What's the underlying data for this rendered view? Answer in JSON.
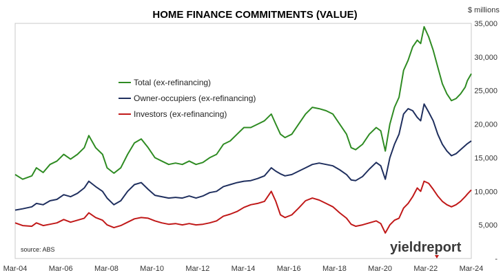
{
  "chart_data": {
    "type": "line",
    "title": "HOME FINANCE COMMITMENTS (VALUE)",
    "y_unit_label": "$ millions",
    "source": "source: ABS",
    "logo": {
      "part1": "yield",
      "part2": "report"
    },
    "xlim": [
      2004.17,
      2024.17
    ],
    "ylim": [
      0,
      35000
    ],
    "grid": false,
    "legend_position": "top-left",
    "x_ticks": [
      {
        "label": "Mar-04",
        "value": 2004.17
      },
      {
        "label": "Mar-06",
        "value": 2006.17
      },
      {
        "label": "Mar-08",
        "value": 2008.17
      },
      {
        "label": "Mar-10",
        "value": 2010.17
      },
      {
        "label": "Mar-12",
        "value": 2012.17
      },
      {
        "label": "Mar-14",
        "value": 2014.17
      },
      {
        "label": "Mar-16",
        "value": 2016.17
      },
      {
        "label": "Mar-18",
        "value": 2018.17
      },
      {
        "label": "Mar-20",
        "value": 2020.17
      },
      {
        "label": "Mar-22",
        "value": 2022.17
      },
      {
        "label": "Mar-24",
        "value": 2024.17
      }
    ],
    "y_ticks": [
      {
        "label": "-",
        "value": 0
      },
      {
        "label": "5,000",
        "value": 5000
      },
      {
        "label": "10,000",
        "value": 10000
      },
      {
        "label": "15,000",
        "value": 15000
      },
      {
        "label": "20,000",
        "value": 20000
      },
      {
        "label": "25,000",
        "value": 25000
      },
      {
        "label": "30,000",
        "value": 30000
      },
      {
        "label": "35,000",
        "value": 35000
      }
    ],
    "series": [
      {
        "name": "Total (ex-refinancing)",
        "color": "#2e8b22",
        "points": [
          [
            2004.17,
            12500
          ],
          [
            2004.5,
            11800
          ],
          [
            2004.9,
            12300
          ],
          [
            2005.1,
            13500
          ],
          [
            2005.4,
            12800
          ],
          [
            2005.7,
            14000
          ],
          [
            2006.0,
            14500
          ],
          [
            2006.3,
            15500
          ],
          [
            2006.6,
            14800
          ],
          [
            2006.9,
            15500
          ],
          [
            2007.2,
            16500
          ],
          [
            2007.4,
            18300
          ],
          [
            2007.7,
            16500
          ],
          [
            2008.0,
            15500
          ],
          [
            2008.2,
            13500
          ],
          [
            2008.5,
            12700
          ],
          [
            2008.8,
            13500
          ],
          [
            2009.1,
            15500
          ],
          [
            2009.4,
            17200
          ],
          [
            2009.7,
            17800
          ],
          [
            2010.0,
            16500
          ],
          [
            2010.3,
            15000
          ],
          [
            2010.6,
            14500
          ],
          [
            2010.9,
            14000
          ],
          [
            2011.2,
            14200
          ],
          [
            2011.5,
            14000
          ],
          [
            2011.8,
            14500
          ],
          [
            2012.1,
            14000
          ],
          [
            2012.4,
            14300
          ],
          [
            2012.7,
            15000
          ],
          [
            2013.0,
            15500
          ],
          [
            2013.3,
            17000
          ],
          [
            2013.6,
            17500
          ],
          [
            2013.9,
            18500
          ],
          [
            2014.2,
            19500
          ],
          [
            2014.5,
            19500
          ],
          [
            2014.8,
            20000
          ],
          [
            2015.1,
            20500
          ],
          [
            2015.4,
            21500
          ],
          [
            2015.6,
            20000
          ],
          [
            2015.8,
            18500
          ],
          [
            2016.0,
            18000
          ],
          [
            2016.3,
            18500
          ],
          [
            2016.6,
            20000
          ],
          [
            2016.9,
            21500
          ],
          [
            2017.2,
            22500
          ],
          [
            2017.5,
            22300
          ],
          [
            2017.8,
            22000
          ],
          [
            2018.1,
            21500
          ],
          [
            2018.4,
            20000
          ],
          [
            2018.7,
            18500
          ],
          [
            2018.9,
            16500
          ],
          [
            2019.1,
            16200
          ],
          [
            2019.4,
            17000
          ],
          [
            2019.7,
            18500
          ],
          [
            2020.0,
            19500
          ],
          [
            2020.2,
            19000
          ],
          [
            2020.4,
            16000
          ],
          [
            2020.6,
            20000
          ],
          [
            2020.8,
            22500
          ],
          [
            2021.0,
            24000
          ],
          [
            2021.2,
            28000
          ],
          [
            2021.4,
            29500
          ],
          [
            2021.6,
            31500
          ],
          [
            2021.8,
            32500
          ],
          [
            2021.95,
            32000
          ],
          [
            2022.1,
            34500
          ],
          [
            2022.3,
            33000
          ],
          [
            2022.5,
            31000
          ],
          [
            2022.7,
            28500
          ],
          [
            2022.9,
            26000
          ],
          [
            2023.1,
            24500
          ],
          [
            2023.3,
            23500
          ],
          [
            2023.5,
            23800
          ],
          [
            2023.7,
            24500
          ],
          [
            2023.9,
            25500
          ],
          [
            2024.0,
            26500
          ],
          [
            2024.17,
            27500
          ]
        ]
      },
      {
        "name": "Owner-occupiers (ex-refinancing)",
        "color": "#1f2f5e",
        "points": [
          [
            2004.17,
            7200
          ],
          [
            2004.5,
            7400
          ],
          [
            2004.9,
            7700
          ],
          [
            2005.1,
            8200
          ],
          [
            2005.4,
            8000
          ],
          [
            2005.7,
            8600
          ],
          [
            2006.0,
            8800
          ],
          [
            2006.3,
            9500
          ],
          [
            2006.6,
            9200
          ],
          [
            2006.9,
            9700
          ],
          [
            2007.2,
            10500
          ],
          [
            2007.4,
            11500
          ],
          [
            2007.7,
            10700
          ],
          [
            2008.0,
            10000
          ],
          [
            2008.2,
            9000
          ],
          [
            2008.5,
            8000
          ],
          [
            2008.8,
            8600
          ],
          [
            2009.1,
            10000
          ],
          [
            2009.4,
            11000
          ],
          [
            2009.7,
            11300
          ],
          [
            2010.0,
            10300
          ],
          [
            2010.3,
            9400
          ],
          [
            2010.6,
            9200
          ],
          [
            2010.9,
            9000
          ],
          [
            2011.2,
            9100
          ],
          [
            2011.5,
            9000
          ],
          [
            2011.8,
            9300
          ],
          [
            2012.1,
            9000
          ],
          [
            2012.4,
            9300
          ],
          [
            2012.7,
            9800
          ],
          [
            2013.0,
            10000
          ],
          [
            2013.3,
            10700
          ],
          [
            2013.6,
            11000
          ],
          [
            2013.9,
            11300
          ],
          [
            2014.2,
            11500
          ],
          [
            2014.5,
            11600
          ],
          [
            2014.8,
            11900
          ],
          [
            2015.1,
            12300
          ],
          [
            2015.4,
            13500
          ],
          [
            2015.6,
            13000
          ],
          [
            2015.8,
            12600
          ],
          [
            2016.0,
            12300
          ],
          [
            2016.3,
            12500
          ],
          [
            2016.6,
            13000
          ],
          [
            2016.9,
            13500
          ],
          [
            2017.2,
            14000
          ],
          [
            2017.5,
            14200
          ],
          [
            2017.8,
            14000
          ],
          [
            2018.1,
            13800
          ],
          [
            2018.4,
            13200
          ],
          [
            2018.7,
            12500
          ],
          [
            2018.9,
            11700
          ],
          [
            2019.1,
            11600
          ],
          [
            2019.4,
            12200
          ],
          [
            2019.7,
            13300
          ],
          [
            2020.0,
            14300
          ],
          [
            2020.2,
            13800
          ],
          [
            2020.4,
            11800
          ],
          [
            2020.6,
            15000
          ],
          [
            2020.8,
            17000
          ],
          [
            2021.0,
            18500
          ],
          [
            2021.2,
            21500
          ],
          [
            2021.4,
            22300
          ],
          [
            2021.6,
            22000
          ],
          [
            2021.8,
            21000
          ],
          [
            2021.95,
            20500
          ],
          [
            2022.1,
            23000
          ],
          [
            2022.3,
            21800
          ],
          [
            2022.5,
            20500
          ],
          [
            2022.7,
            18500
          ],
          [
            2022.9,
            17000
          ],
          [
            2023.1,
            16000
          ],
          [
            2023.3,
            15300
          ],
          [
            2023.5,
            15600
          ],
          [
            2023.7,
            16200
          ],
          [
            2023.9,
            16800
          ],
          [
            2024.0,
            17100
          ],
          [
            2024.17,
            17500
          ]
        ]
      },
      {
        "name": "Investors (ex-refinancing)",
        "color": "#c01818",
        "points": [
          [
            2004.17,
            5300
          ],
          [
            2004.5,
            4900
          ],
          [
            2004.9,
            4800
          ],
          [
            2005.1,
            5300
          ],
          [
            2005.4,
            4900
          ],
          [
            2005.7,
            5100
          ],
          [
            2006.0,
            5300
          ],
          [
            2006.3,
            5800
          ],
          [
            2006.6,
            5400
          ],
          [
            2006.9,
            5700
          ],
          [
            2007.2,
            6000
          ],
          [
            2007.4,
            6800
          ],
          [
            2007.7,
            6100
          ],
          [
            2008.0,
            5700
          ],
          [
            2008.2,
            5000
          ],
          [
            2008.5,
            4600
          ],
          [
            2008.8,
            4900
          ],
          [
            2009.1,
            5400
          ],
          [
            2009.4,
            5900
          ],
          [
            2009.7,
            6100
          ],
          [
            2010.0,
            6000
          ],
          [
            2010.3,
            5600
          ],
          [
            2010.6,
            5300
          ],
          [
            2010.9,
            5100
          ],
          [
            2011.2,
            5200
          ],
          [
            2011.5,
            5000
          ],
          [
            2011.8,
            5200
          ],
          [
            2012.1,
            5000
          ],
          [
            2012.4,
            5100
          ],
          [
            2012.7,
            5300
          ],
          [
            2013.0,
            5600
          ],
          [
            2013.3,
            6300
          ],
          [
            2013.6,
            6600
          ],
          [
            2013.9,
            7000
          ],
          [
            2014.2,
            7600
          ],
          [
            2014.5,
            8000
          ],
          [
            2014.8,
            8200
          ],
          [
            2015.1,
            8500
          ],
          [
            2015.4,
            10000
          ],
          [
            2015.6,
            8500
          ],
          [
            2015.8,
            6500
          ],
          [
            2016.0,
            6100
          ],
          [
            2016.3,
            6500
          ],
          [
            2016.6,
            7500
          ],
          [
            2016.9,
            8600
          ],
          [
            2017.2,
            9000
          ],
          [
            2017.5,
            8700
          ],
          [
            2017.8,
            8200
          ],
          [
            2018.1,
            7700
          ],
          [
            2018.4,
            6800
          ],
          [
            2018.7,
            6000
          ],
          [
            2018.9,
            5100
          ],
          [
            2019.1,
            4800
          ],
          [
            2019.4,
            5000
          ],
          [
            2019.7,
            5300
          ],
          [
            2020.0,
            5600
          ],
          [
            2020.2,
            5200
          ],
          [
            2020.4,
            3800
          ],
          [
            2020.6,
            5000
          ],
          [
            2020.8,
            5700
          ],
          [
            2021.0,
            6000
          ],
          [
            2021.2,
            7500
          ],
          [
            2021.4,
            8200
          ],
          [
            2021.6,
            9200
          ],
          [
            2021.8,
            10500
          ],
          [
            2021.95,
            10000
          ],
          [
            2022.1,
            11500
          ],
          [
            2022.3,
            11200
          ],
          [
            2022.5,
            10300
          ],
          [
            2022.7,
            9300
          ],
          [
            2022.9,
            8500
          ],
          [
            2023.1,
            8000
          ],
          [
            2023.3,
            7700
          ],
          [
            2023.5,
            8000
          ],
          [
            2023.7,
            8500
          ],
          [
            2023.9,
            9200
          ],
          [
            2024.0,
            9600
          ],
          [
            2024.17,
            10200
          ]
        ]
      }
    ]
  }
}
